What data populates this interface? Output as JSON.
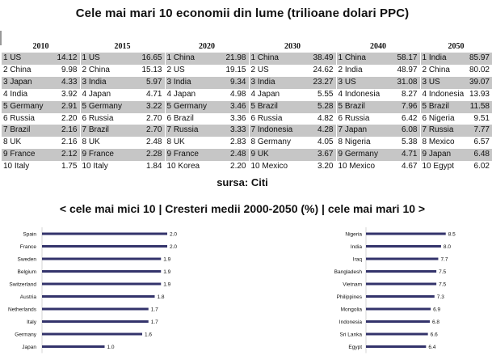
{
  "title": "Cele mai mari 10 economii din lume (trilioane dolari PPC)",
  "source": "sursa: Citi",
  "subtitle": "< cele mai mici 10 | Cresteri medii 2000-2050 (%) | cele mai mari 10 >",
  "chart_data": [
    {
      "type": "table",
      "title": "Cele mai mari 10 economii din lume (trilioane dolari PPC)",
      "columns": [
        "2010",
        "2015",
        "2020",
        "2030",
        "2040",
        "2050"
      ],
      "rows": [
        [
          [
            "1 US",
            "14.12"
          ],
          [
            "1 US",
            "16.65"
          ],
          [
            "1 China",
            "21.98"
          ],
          [
            "1 China",
            "38.49"
          ],
          [
            "1 China",
            "58.17"
          ],
          [
            "1 India",
            "85.97"
          ]
        ],
        [
          [
            "2 China",
            "9.98"
          ],
          [
            "2 China",
            "15.13"
          ],
          [
            "2 US",
            "19.15"
          ],
          [
            "2 US",
            "24.62"
          ],
          [
            "2 India",
            "48.97"
          ],
          [
            "2 China",
            "80.02"
          ]
        ],
        [
          [
            "3 Japan",
            "4.33"
          ],
          [
            "3 India",
            "5.97"
          ],
          [
            "3 India",
            "9.34"
          ],
          [
            "3 India",
            "23.27"
          ],
          [
            "3 US",
            "31.08"
          ],
          [
            "3 US",
            "39.07"
          ]
        ],
        [
          [
            "4 India",
            "3.92"
          ],
          [
            "4 Japan",
            "4.71"
          ],
          [
            "4 Japan",
            "4.98"
          ],
          [
            "4 Japan",
            "5.55"
          ],
          [
            "4 Indonesia",
            "8.27"
          ],
          [
            "4 Indonesia",
            "13.93"
          ]
        ],
        [
          [
            "5 Germany",
            "2.91"
          ],
          [
            "5 Germany",
            "3.22"
          ],
          [
            "5 Germany",
            "3.46"
          ],
          [
            "5 Brazil",
            "5.28"
          ],
          [
            "5 Brazil",
            "7.96"
          ],
          [
            "5 Brazil",
            "11.58"
          ]
        ],
        [
          [
            "6 Russia",
            "2.20"
          ],
          [
            "6 Russia",
            "2.70"
          ],
          [
            "6 Brazil",
            "3.36"
          ],
          [
            "6 Russia",
            "4.82"
          ],
          [
            "6 Russia",
            "6.42"
          ],
          [
            "6 Nigeria",
            "9.51"
          ]
        ],
        [
          [
            "7 Brazil",
            "2.16"
          ],
          [
            "7 Brazil",
            "2.70"
          ],
          [
            "7 Russia",
            "3.33"
          ],
          [
            "7 Indonesia",
            "4.28"
          ],
          [
            "7 Japan",
            "6.08"
          ],
          [
            "7 Russia",
            "7.77"
          ]
        ],
        [
          [
            "8 UK",
            "2.16"
          ],
          [
            "8 UK",
            "2.48"
          ],
          [
            "8 UK",
            "2.83"
          ],
          [
            "8 Germany",
            "4.05"
          ],
          [
            "8 Nigeria",
            "5.38"
          ],
          [
            "8 Mexico",
            "6.57"
          ]
        ],
        [
          [
            "9 France",
            "2.12"
          ],
          [
            "9 France",
            "2.28"
          ],
          [
            "9 France",
            "2.48"
          ],
          [
            "9 UK",
            "3.67"
          ],
          [
            "9 Germany",
            "4.71"
          ],
          [
            "9 Japan",
            "6.48"
          ]
        ],
        [
          [
            "10 Italy",
            "1.75"
          ],
          [
            "10 Italy",
            "1.84"
          ],
          [
            "10 Korea",
            "2.20"
          ],
          [
            "10 Mexico",
            "3.20"
          ],
          [
            "10 Mexico",
            "4.67"
          ],
          [
            "10 Egypt",
            "6.02"
          ]
        ]
      ]
    },
    {
      "type": "bar",
      "orientation": "horizontal",
      "categories": [
        "Spain",
        "France",
        "Sweden",
        "Belgium",
        "Switzerland",
        "Austria",
        "Netherlands",
        "Italy",
        "Germany",
        "Japan"
      ],
      "values": [
        2.0,
        2.0,
        1.9,
        1.9,
        1.9,
        1.8,
        1.7,
        1.7,
        1.6,
        1.0
      ],
      "labels": [
        "2.0",
        "2.0",
        "1.9",
        "1.9",
        "1.9",
        "1.8",
        "1.7",
        "1.7",
        "1.6",
        "1.0"
      ],
      "xlim": [
        0,
        2.4
      ],
      "bar_color": "#33336b"
    },
    {
      "type": "bar",
      "orientation": "horizontal",
      "categories": [
        "Nigeria",
        "India",
        "Iraq",
        "Bangladesh",
        "Vietnam",
        "Philippines",
        "Mongolia",
        "Indonesia",
        "Sri Lanka",
        "Egypt"
      ],
      "values": [
        8.5,
        8.0,
        7.7,
        7.5,
        7.5,
        7.3,
        6.9,
        6.8,
        6.6,
        6.4
      ],
      "labels": [
        "8.5",
        "8.0",
        "7.7",
        "7.5",
        "7.5",
        "7.3",
        "6.9",
        "6.8",
        "6.6",
        "6.4"
      ],
      "xlim": [
        0,
        9.9
      ],
      "bar_color": "#33336b"
    }
  ]
}
